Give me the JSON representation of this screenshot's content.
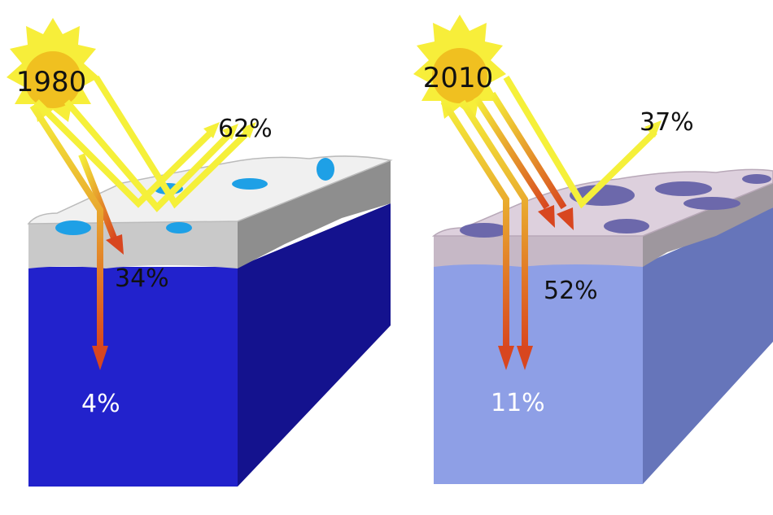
{
  "panels": [
    {
      "year": "1980",
      "reflected": "62%",
      "absorbed_ice": "34%",
      "absorbed_ocean": "4%",
      "colors": {
        "water_front": "#2222cc",
        "water_side": "#14128e",
        "ice_top": "#f0f0f0",
        "ice_front": "#c9c9c9",
        "ice_side": "#8e8e8e",
        "ponds": "#1ea0e6"
      }
    },
    {
      "year": "2010",
      "reflected": "37%",
      "absorbed_ice": "52%",
      "absorbed_ocean": "11%",
      "colors": {
        "water_front": "#8e9fe6",
        "water_side": "#6675ba",
        "ice_top": "#ddd0dd",
        "ice_front": "#c6b8c6",
        "ice_side": "#9e979e",
        "ponds": "#6c68ab"
      }
    }
  ],
  "colors": {
    "sun": "#f7ee3a",
    "sun_core": "#f0c020",
    "beam": "#f5f03a",
    "absorbed": "#d8461f",
    "label": "#111111",
    "ocean_label": "#ffffff"
  }
}
